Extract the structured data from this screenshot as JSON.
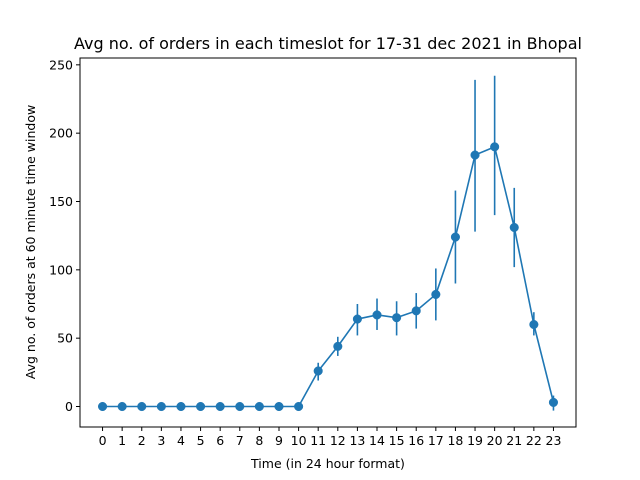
{
  "chart_data": {
    "type": "line",
    "title": "Avg no. of orders in each timeslot for 17-31 dec 2021 in Bhopal",
    "xlabel": "Time (in 24 hour format)",
    "ylabel": "Avg no. of orders at 60 minute time window",
    "x": [
      0,
      1,
      2,
      3,
      4,
      5,
      6,
      7,
      8,
      9,
      10,
      11,
      12,
      13,
      14,
      15,
      16,
      17,
      18,
      19,
      20,
      21,
      22,
      23
    ],
    "x_tick_labels": [
      "0",
      "1",
      "2",
      "3",
      "4",
      "5",
      "6",
      "7",
      "8",
      "9",
      "10",
      "11",
      "12",
      "13",
      "14",
      "15",
      "16",
      "17",
      "18",
      "19",
      "20",
      "21",
      "22",
      "23"
    ],
    "series": [
      {
        "values": [
          0,
          0,
          0,
          0,
          0,
          0,
          0,
          0,
          0,
          0,
          0,
          26,
          44,
          64,
          67,
          65,
          70,
          82,
          124,
          184,
          190,
          131,
          60,
          3
        ],
        "error_low": [
          0,
          0,
          0,
          0,
          0,
          0,
          0,
          0,
          0,
          0,
          0,
          19,
          37,
          52,
          56,
          52,
          57,
          63,
          90,
          128,
          140,
          102,
          52,
          -3
        ],
        "error_high": [
          0,
          0,
          0,
          0,
          0,
          0,
          0,
          0,
          0,
          0,
          0,
          32,
          51,
          75,
          79,
          77,
          83,
          101,
          158,
          239,
          242,
          160,
          69,
          8
        ]
      }
    ],
    "ylim": [
      -15,
      255
    ],
    "xlim": [
      -1.15,
      24.15
    ],
    "y_ticks": [
      0,
      50,
      100,
      150,
      200,
      250
    ],
    "y_tick_labels": [
      "0",
      "50",
      "100",
      "150",
      "200",
      "250"
    ],
    "grid": false,
    "color": "#1f77b4"
  }
}
